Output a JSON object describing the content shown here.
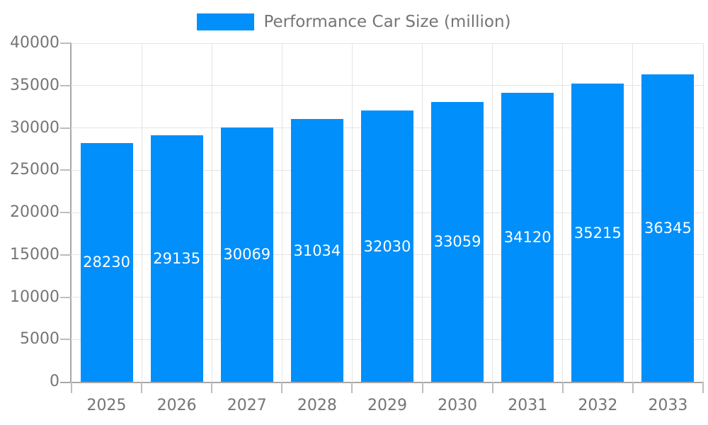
{
  "chart_data": {
    "type": "bar",
    "title": "Performance Car Size (million)",
    "categories": [
      "2025",
      "2026",
      "2027",
      "2028",
      "2029",
      "2030",
      "2031",
      "2032",
      "2033"
    ],
    "values": [
      28230,
      29135,
      30069,
      31034,
      32030,
      33059,
      34120,
      35215,
      36345
    ],
    "series": [
      {
        "name": "Performance Car Size (million)",
        "values": [
          28230,
          29135,
          30069,
          31034,
          32030,
          33059,
          34120,
          35215,
          36345
        ]
      }
    ],
    "xlabel": "",
    "ylabel": "",
    "ylim": [
      0,
      40000
    ],
    "ytick_step": 5000,
    "yticks": [
      0,
      5000,
      10000,
      15000,
      20000,
      25000,
      30000,
      35000,
      40000
    ],
    "grid": true,
    "legend_position": "top-center",
    "value_labels": "inside-center",
    "colors": {
      "bar": "#008FFB",
      "value_label": "#ffffff",
      "axis_text": "#757575",
      "axis_line": "#a6a6a6",
      "grid_line": "#e4e4e4",
      "tick_line": "#bdbdbd",
      "background": "#ffffff"
    }
  }
}
